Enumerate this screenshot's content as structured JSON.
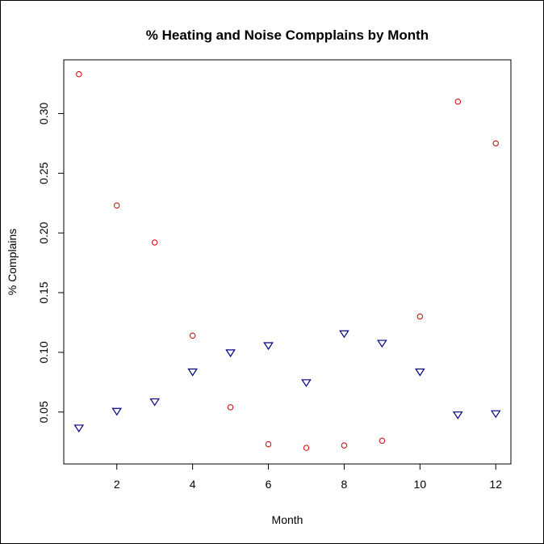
{
  "chart_data": {
    "type": "scatter",
    "title": "% Heating and Noise Compplains by Month",
    "xlabel": "Month",
    "ylabel": "% Complains",
    "xlim": [
      0.6,
      12.4
    ],
    "ylim": [
      0.0065,
      0.345
    ],
    "x_ticks": [
      2,
      4,
      6,
      8,
      10,
      12
    ],
    "x_tick_labels": [
      "2",
      "4",
      "6",
      "8",
      "10",
      "12"
    ],
    "y_ticks": [
      0.05,
      0.1,
      0.15,
      0.2,
      0.25,
      0.3
    ],
    "y_tick_labels": [
      "0.05",
      "0.10",
      "0.15",
      "0.20",
      "0.25",
      "0.30"
    ],
    "grid": false,
    "legend": "none",
    "x": [
      1,
      2,
      3,
      4,
      5,
      6,
      7,
      8,
      9,
      10,
      11,
      12
    ],
    "series": [
      {
        "marker": "circle",
        "color": "#cc0000",
        "values": [
          0.333,
          0.223,
          0.192,
          0.114,
          0.054,
          0.023,
          0.02,
          0.022,
          0.026,
          0.13,
          0.31,
          0.275
        ]
      },
      {
        "marker": "triangle-down",
        "color": "#000080",
        "values": [
          0.037,
          0.051,
          0.059,
          0.084,
          0.1,
          0.106,
          0.075,
          0.116,
          0.108,
          0.084,
          0.048,
          0.049
        ]
      }
    ]
  }
}
